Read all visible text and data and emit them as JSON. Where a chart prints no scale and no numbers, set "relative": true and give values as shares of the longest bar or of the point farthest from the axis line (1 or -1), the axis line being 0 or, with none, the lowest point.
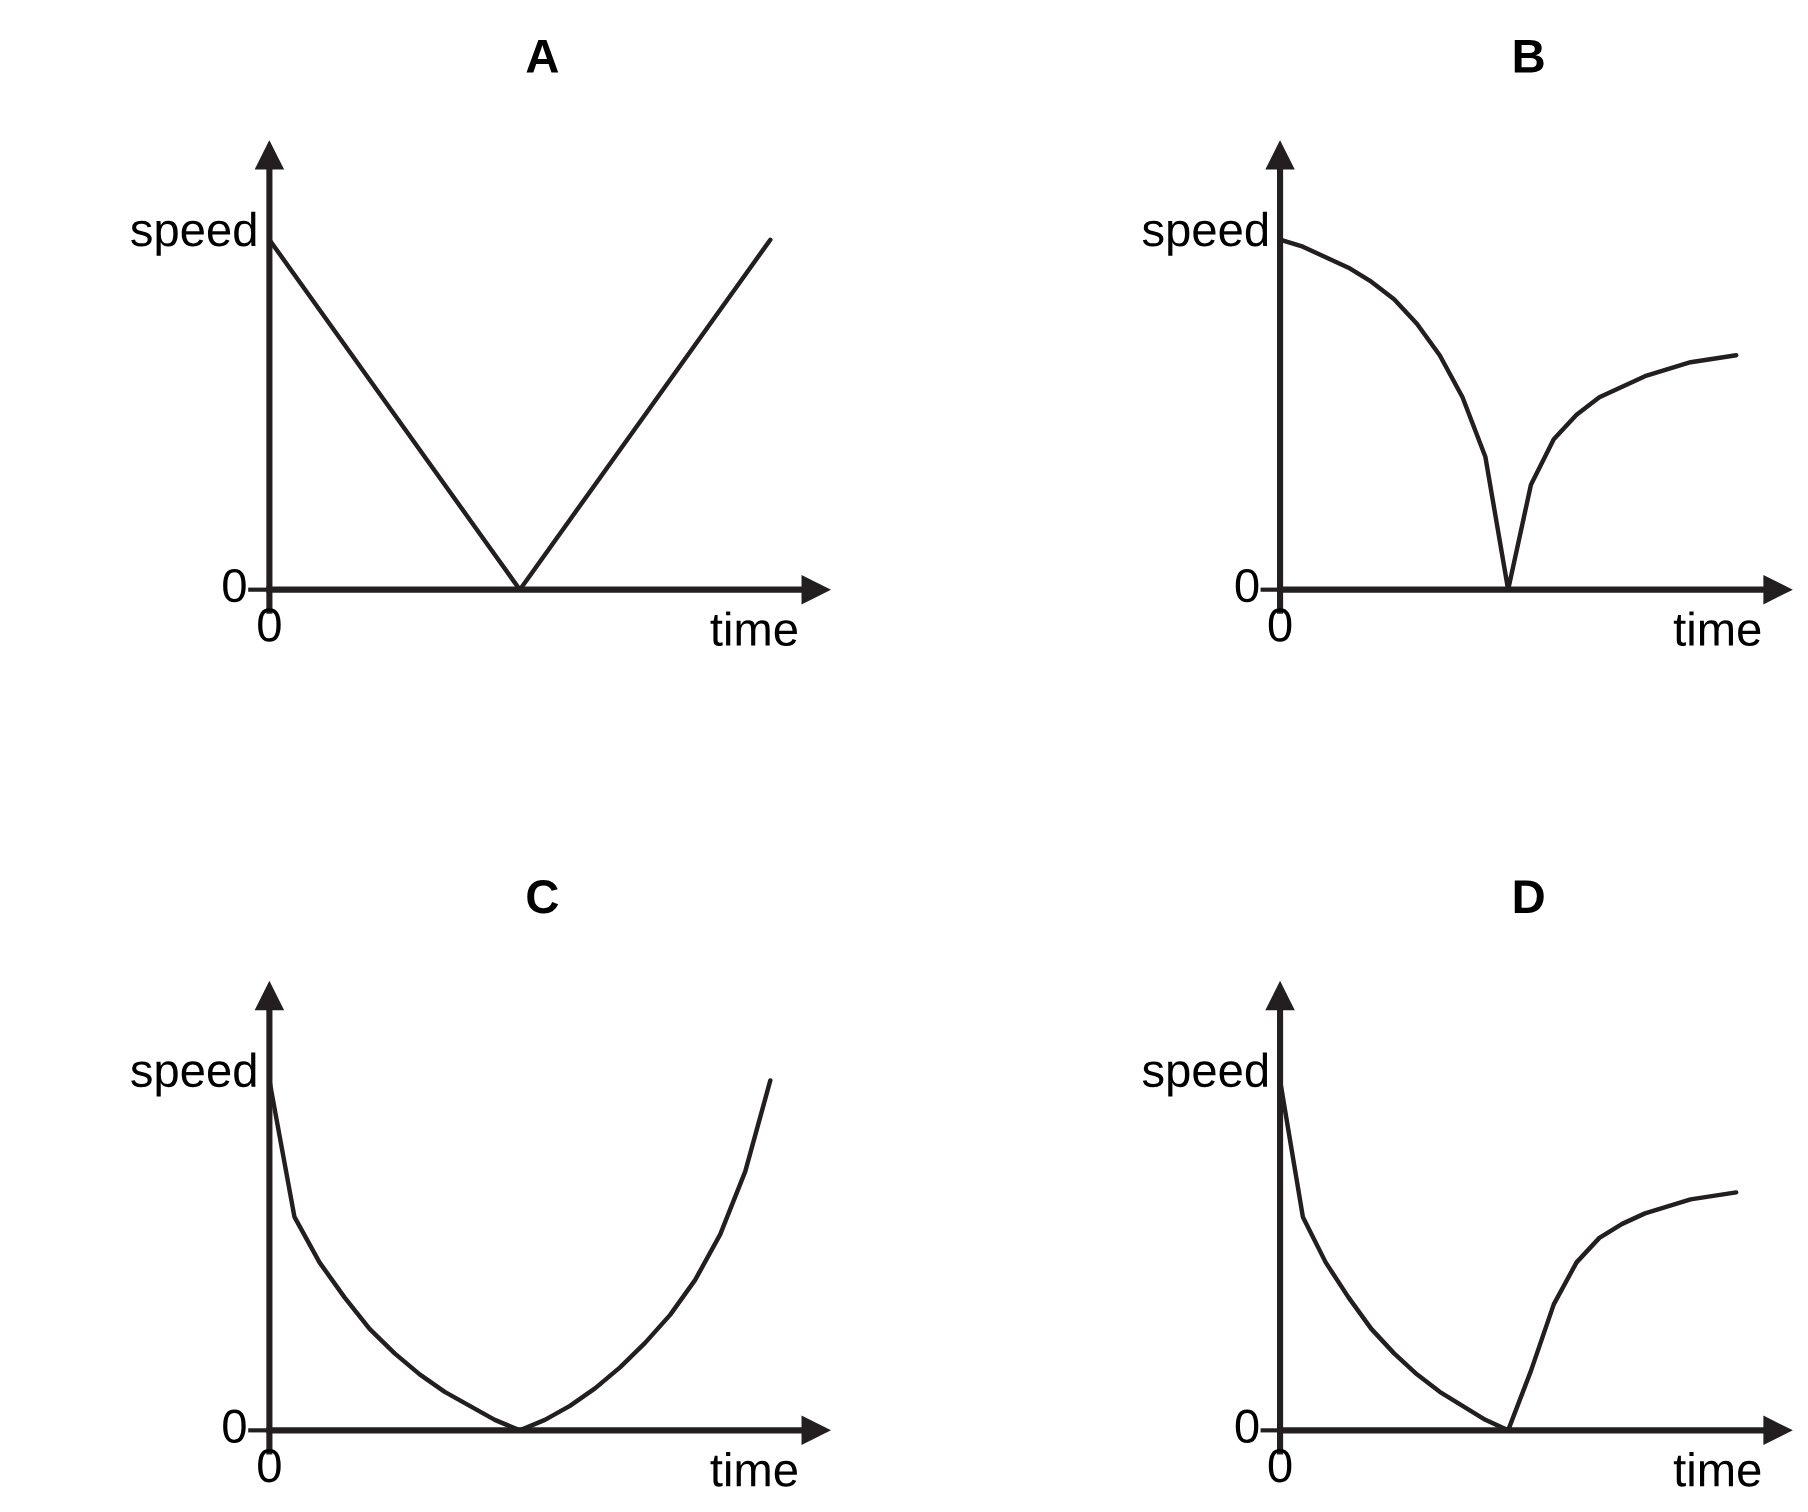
{
  "chart_data": [
    {
      "type": "line",
      "title": "A",
      "xlabel": "time",
      "ylabel": "speed",
      "relative": true,
      "annotations": [
        "0",
        "0"
      ],
      "categories": [
        null,
        null,
        null,
        null,
        null,
        null,
        null,
        null,
        null,
        null,
        null,
        null,
        null,
        null,
        null,
        null,
        null,
        null,
        null,
        null,
        null
      ],
      "series": [
        {
          "color": "#231f20",
          "values": [
            1.0,
            0.9,
            0.8,
            0.7,
            0.6,
            0.5,
            0.4,
            0.3,
            0.2,
            0.1,
            0,
            0.1,
            0.2,
            0.3,
            0.4,
            0.5,
            0.6,
            0.7,
            0.8,
            0.9,
            1.0
          ]
        }
      ]
    },
    {
      "type": "line",
      "title": "B",
      "xlabel": "time",
      "ylabel": "speed",
      "relative": true,
      "annotations": [
        "0",
        "0"
      ],
      "categories": [
        null,
        null,
        null,
        null,
        null,
        null,
        null,
        null,
        null,
        null,
        null,
        null,
        null,
        null,
        null,
        null,
        null,
        null,
        null,
        null,
        null
      ],
      "series": [
        {
          "color": "#231f20",
          "values": [
            1.0,
            0.98,
            0.95,
            0.92,
            0.88,
            0.83,
            0.76,
            0.67,
            0.55,
            0.38,
            0,
            0.3,
            0.43,
            0.5,
            0.55,
            0.58,
            0.61,
            0.63,
            0.65,
            0.66,
            0.67
          ]
        }
      ]
    },
    {
      "type": "line",
      "title": "C",
      "xlabel": "time",
      "ylabel": "speed",
      "relative": true,
      "annotations": [
        "0",
        "0"
      ],
      "categories": [
        null,
        null,
        null,
        null,
        null,
        null,
        null,
        null,
        null,
        null,
        null,
        null,
        null,
        null,
        null,
        null,
        null,
        null,
        null,
        null,
        null
      ],
      "series": [
        {
          "color": "#231f20",
          "values": [
            1.0,
            0.61,
            0.48,
            0.38,
            0.29,
            0.22,
            0.16,
            0.11,
            0.07,
            0.03,
            0,
            0.03,
            0.07,
            0.12,
            0.18,
            0.25,
            0.33,
            0.43,
            0.56,
            0.74,
            1.0
          ]
        }
      ]
    },
    {
      "type": "line",
      "title": "D",
      "xlabel": "time",
      "ylabel": "speed",
      "relative": true,
      "annotations": [
        "0",
        "0"
      ],
      "categories": [
        null,
        null,
        null,
        null,
        null,
        null,
        null,
        null,
        null,
        null,
        null,
        null,
        null,
        null,
        null,
        null,
        null,
        null,
        null,
        null,
        null
      ],
      "series": [
        {
          "color": "#231f20",
          "values": [
            1.0,
            0.61,
            0.48,
            0.38,
            0.29,
            0.22,
            0.16,
            0.11,
            0.07,
            0.03,
            0,
            0.17,
            0.36,
            0.48,
            0.55,
            0.59,
            0.62,
            0.64,
            0.66,
            0.67,
            0.68
          ]
        }
      ]
    }
  ]
}
